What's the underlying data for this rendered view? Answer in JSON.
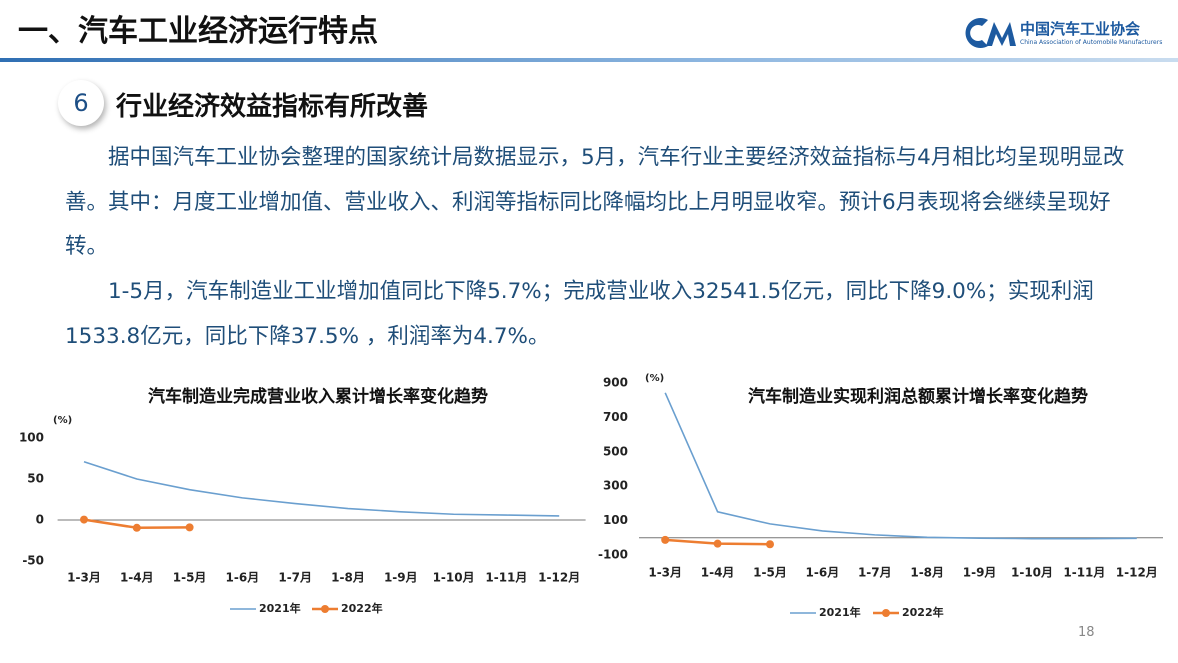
{
  "header": {
    "title": "一、汽车工业经济运行特点",
    "logo_cn": "中国汽车工业协会",
    "logo_en": "China Association of Automobile Manufacturers"
  },
  "section": {
    "number": 6,
    "title": "行业经济效益指标有所改善"
  },
  "paragraphs": [
    "据中国汽车工业协会整理的国家统计局数据显示，5月，汽车行业主要经济效益指标与4月相比均呈现明显改善。其中：月度工业增加值、营业收入、利润等指标同比降幅均比上月明显收窄。预计6月表现将会继续呈现好转。",
    "1-5月，汽车制造业工业增加值同比下降5.7%；完成营业收入32541.5亿元，同比下降9.0%；实现利润1533.8亿元，同比下降37.5% ，利润率为4.7%。"
  ],
  "page_number": 18,
  "chart_data": [
    {
      "type": "line",
      "title": "汽车制造业完成营业收入累计增长率变化趋势",
      "y_unit": "(%)",
      "categories": [
        "1-3月",
        "1-4月",
        "1-5月",
        "1-6月",
        "1-7月",
        "1-8月",
        "1-9月",
        "1-10月",
        "1-11月",
        "1-12月"
      ],
      "series": [
        {
          "name": "2021年",
          "color": "#6a9fcf",
          "values": [
            71,
            50,
            37,
            27,
            20,
            14,
            10,
            7,
            6,
            5
          ]
        },
        {
          "name": "2022年",
          "color": "#ed7d31",
          "marker": "circle",
          "values": [
            0.5,
            -9.5,
            -9,
            null,
            null,
            null,
            null,
            null,
            null,
            null
          ]
        }
      ],
      "ylim": [
        -50,
        100
      ],
      "yticks": [
        -50,
        0,
        50,
        100
      ],
      "grid": false,
      "legend": "bottom"
    },
    {
      "type": "line",
      "title": "汽车制造业实现利润总额累计增长率变化趋势",
      "y_unit": "(%)",
      "categories": [
        "1-3月",
        "1-4月",
        "1-5月",
        "1-6月",
        "1-7月",
        "1-8月",
        "1-9月",
        "1-10月",
        "1-11月",
        "1-12月"
      ],
      "series": [
        {
          "name": "2021年",
          "color": "#6a9fcf",
          "values": [
            843,
            151,
            81,
            40,
            17,
            3,
            -2,
            -5,
            -5,
            -3
          ]
        },
        {
          "name": "2022年",
          "color": "#ed7d31",
          "marker": "circle",
          "values": [
            -12,
            -34,
            -37.5,
            null,
            null,
            null,
            null,
            null,
            null,
            null
          ]
        }
      ],
      "ylim": [
        -100,
        900
      ],
      "yticks": [
        -100,
        100,
        300,
        500,
        700,
        900
      ],
      "grid": false,
      "legend": "bottom"
    }
  ]
}
